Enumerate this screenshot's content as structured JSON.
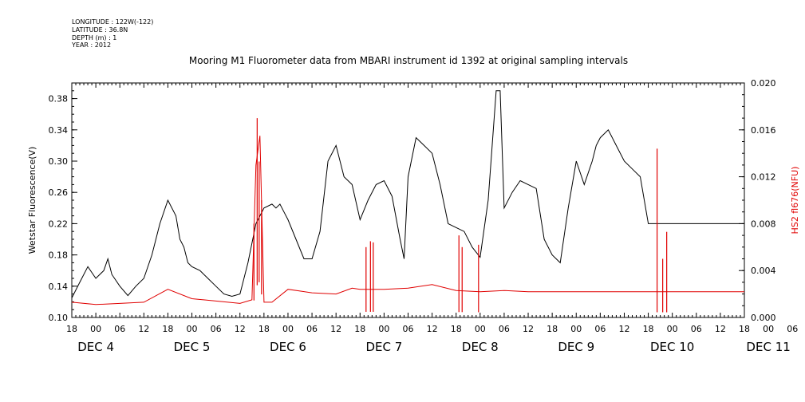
{
  "header": {
    "lines": [
      "LONGITUDE : 122W(-122)",
      "LATITUDE : 36.8N",
      "DEPTH (m) : 1",
      "YEAR : 2012"
    ]
  },
  "colors": {
    "series_left": "#000000",
    "series_right": "#e00000",
    "axis": "#000000"
  },
  "chart_data": {
    "type": "line",
    "title": "Mooring M1 Fluorometer data from MBARI instrument id 1392 at original sampling intervals",
    "ylabel": "Wetstar Fluorescence(V)",
    "y2label": "HS2 fl676(NFU)",
    "ylim": [
      0.1,
      0.4
    ],
    "y2lim": [
      0.0,
      0.02
    ],
    "yticks": [
      "0.10",
      "0.14",
      "0.18",
      "0.22",
      "0.26",
      "0.30",
      "0.34",
      "0.38"
    ],
    "y2ticks": [
      "0.000",
      "0.004",
      "0.008",
      "0.012",
      "0.016",
      "0.020"
    ],
    "x_hour_ticks": [
      "18",
      "00",
      "06",
      "12",
      "18",
      "00",
      "06",
      "12",
      "18",
      "00",
      "06",
      "12",
      "18",
      "00",
      "06",
      "12",
      "18",
      "00",
      "06",
      "12",
      "18",
      "00",
      "06",
      "12",
      "18",
      "00",
      "06",
      "12",
      "18",
      "00",
      "06",
      "12",
      "18"
    ],
    "x_day_labels": [
      {
        "label": "DEC  4",
        "hour": 6
      },
      {
        "label": "DEC  5",
        "hour": 30
      },
      {
        "label": "DEC  6",
        "hour": 54
      },
      {
        "label": "DEC  7",
        "hour": 78
      },
      {
        "label": "DEC  8",
        "hour": 102
      },
      {
        "label": "DEC  9",
        "hour": 126
      },
      {
        "label": "DEC 10",
        "hour": 150
      },
      {
        "label": "DEC 11",
        "hour": 174
      }
    ],
    "x_range_hours": [
      0,
      168
    ],
    "x_units": "hours after DEC 3 18:00",
    "series": [
      {
        "name": "Wetstar Fluorescence(V)",
        "axis": "left",
        "x": [
          0,
          2,
          4,
          6,
          8,
          9,
          10,
          12,
          14,
          16,
          18,
          20,
          21,
          22,
          24,
          26,
          27,
          28,
          29,
          30,
          32,
          34,
          36,
          38,
          40,
          42,
          44,
          46,
          48,
          50,
          51,
          52,
          53,
          54,
          56,
          58,
          60,
          62,
          64,
          66,
          68,
          70,
          72,
          74,
          76,
          78,
          80,
          82,
          83,
          84,
          86,
          88,
          90,
          92,
          94,
          96,
          98,
          100,
          102,
          104,
          106,
          107,
          108,
          110,
          112,
          114,
          116,
          118,
          120,
          122,
          124,
          126,
          128,
          130,
          131,
          132,
          134,
          136,
          138,
          140,
          142,
          144,
          146,
          148,
          150,
          152,
          154,
          156,
          158,
          160,
          162,
          164,
          166,
          168
        ],
        "y": [
          0.125,
          0.145,
          0.165,
          0.15,
          0.16,
          0.175,
          0.155,
          0.14,
          0.128,
          0.14,
          0.15,
          0.18,
          0.2,
          0.22,
          0.25,
          0.23,
          0.2,
          0.19,
          0.17,
          0.165,
          0.16,
          0.15,
          0.14,
          0.13,
          0.127,
          0.13,
          0.17,
          0.22,
          0.24,
          0.245,
          0.24,
          0.245,
          0.235,
          0.225,
          0.2,
          0.175,
          0.175,
          0.21,
          0.3,
          0.32,
          0.28,
          0.27,
          0.225,
          0.25,
          0.27,
          0.275,
          0.255,
          0.2,
          0.175,
          0.28,
          0.33,
          0.32,
          0.31,
          0.27,
          0.22,
          0.215,
          0.21,
          0.19,
          0.177,
          0.25,
          0.39,
          0.39,
          0.24,
          0.26,
          0.275,
          0.27,
          0.265,
          0.2,
          0.18,
          0.17,
          0.24,
          0.3,
          0.27,
          0.3,
          0.32,
          0.33,
          0.34,
          0.32,
          0.3,
          0.29,
          0.28,
          0.22,
          0.22,
          0.22,
          0.22,
          0.22,
          0.22,
          0.22,
          0.22,
          0.22,
          0.22,
          0.22,
          0.22,
          0.22
        ]
      },
      {
        "name": "HS2 fl676(NFU)",
        "axis": "right",
        "x": [
          0,
          6,
          12,
          18,
          24,
          30,
          36,
          42,
          45,
          46,
          47,
          48,
          50,
          54,
          60,
          66,
          70,
          72,
          78,
          84,
          90,
          96,
          102,
          108,
          114,
          120,
          126,
          132,
          138,
          144,
          150,
          156,
          162,
          168
        ],
        "y": [
          0.0013,
          0.0011,
          0.0012,
          0.0013,
          0.0024,
          0.0016,
          0.0014,
          0.0012,
          0.0015,
          0.013,
          0.0155,
          0.0013,
          0.0013,
          0.0024,
          0.0021,
          0.002,
          0.0025,
          0.0024,
          0.0024,
          0.0025,
          0.0028,
          0.0023,
          0.0022,
          0.0023,
          0.0022,
          0.0022,
          0.0022,
          0.0022,
          0.0022,
          0.0022,
          0.0022,
          0.0022,
          0.0022,
          0.0022
        ]
      }
    ],
    "spikes_right": [
      {
        "x": 45.5,
        "y": 0.008
      },
      {
        "x": 46.3,
        "y": 0.017
      },
      {
        "x": 46.8,
        "y": 0.0133
      },
      {
        "x": 47.4,
        "y": 0.01
      },
      {
        "x": 73.5,
        "y": 0.006
      },
      {
        "x": 74.6,
        "y": 0.0065
      },
      {
        "x": 75.3,
        "y": 0.0064
      },
      {
        "x": 96.7,
        "y": 0.007
      },
      {
        "x": 97.5,
        "y": 0.006
      },
      {
        "x": 101.6,
        "y": 0.0062
      },
      {
        "x": 146.2,
        "y": 0.0144
      },
      {
        "x": 147.6,
        "y": 0.005
      },
      {
        "x": 148.6,
        "y": 0.0073
      }
    ]
  }
}
